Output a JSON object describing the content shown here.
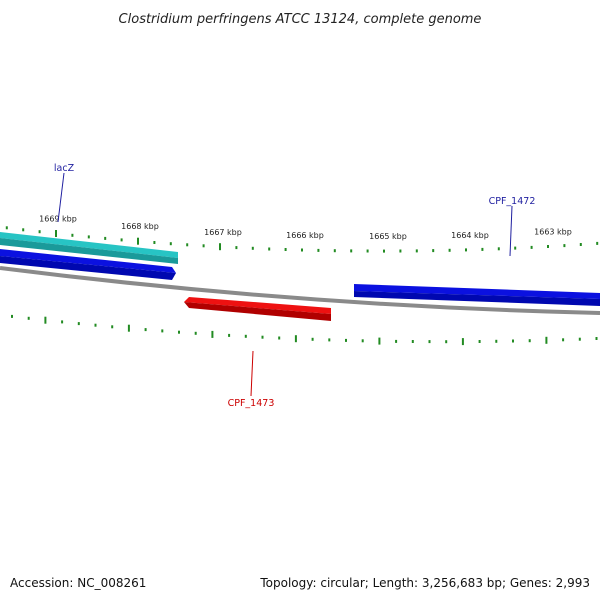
{
  "title": "Clostridium perfringens ATCC 13124, complete genome",
  "footer": {
    "accession": "Accession: NC_008261",
    "summary": "Topology: circular; Length: 3,256,683 bp; Genes: 2,993"
  },
  "scale": {
    "unit": "kbp",
    "labels": [
      "1669 kbp",
      "1668 kbp",
      "1667 kbp",
      "1666 kbp",
      "1665 kbp",
      "1664 kbp",
      "1663 kbp"
    ]
  },
  "genes": [
    {
      "name": "lacZ",
      "strand": "+",
      "label_color": "#1f1fa0",
      "colors": [
        "#27c4c4",
        "#1a9a9a"
      ]
    },
    {
      "name": "CPF_1472",
      "strand": "+",
      "label_color": "#1f1fa0",
      "colors": [
        "#0b11e0",
        "#0008b0"
      ]
    },
    {
      "name": "CPF_1473",
      "strand": "-",
      "label_color": "#cc0000",
      "colors": [
        "#ee1111",
        "#b00000"
      ]
    },
    {
      "name": "",
      "strand": "+",
      "colors": [
        "#0b11e0",
        "#0008b0"
      ]
    }
  ],
  "colors": {
    "backbone": "#8a8a8a",
    "ticks": "#228b22"
  }
}
